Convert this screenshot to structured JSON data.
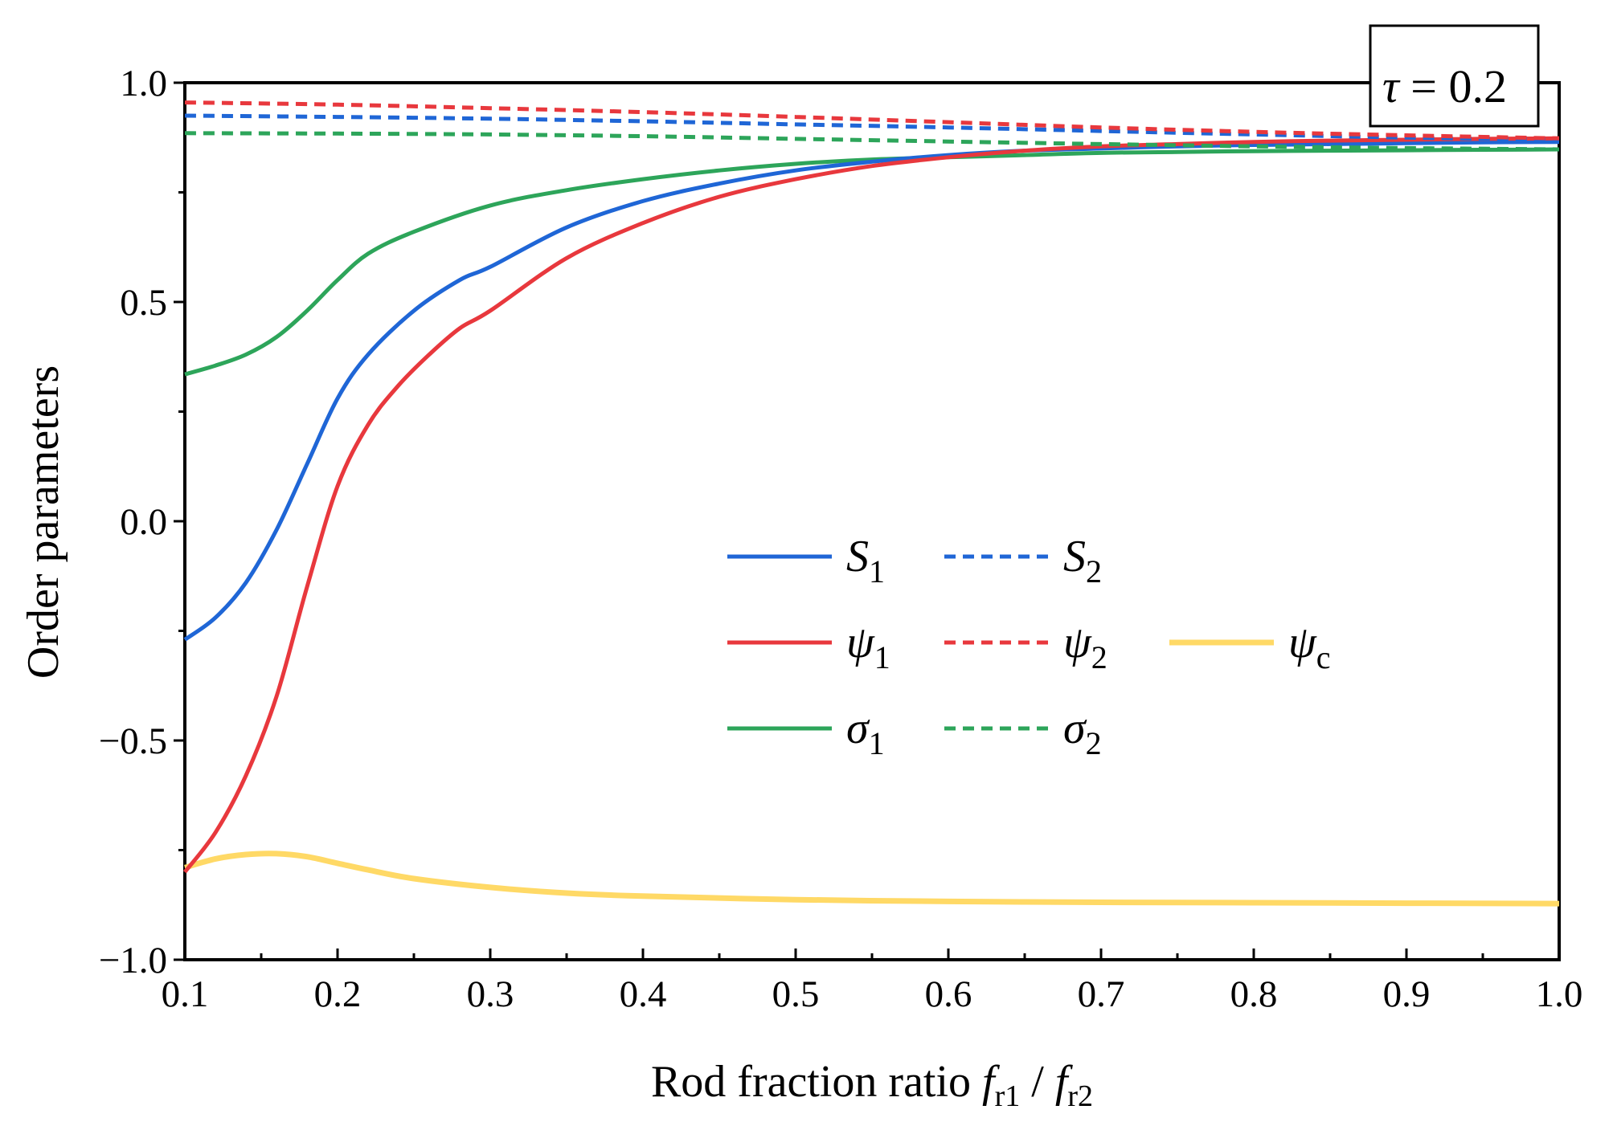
{
  "chart_data": {
    "type": "line",
    "annotation": {
      "symbol": "τ",
      "eq": " = ",
      "value": "0.2"
    },
    "xlabel": {
      "main": "Rod fraction ratio ",
      "f": "f",
      "sub1": "r1",
      "slash": " / ",
      "sub2": "r2"
    },
    "ylabel": "Order parameters",
    "xlim": [
      0.1,
      1.0
    ],
    "ylim": [
      -1.0,
      1.0
    ],
    "xticks": [
      0.1,
      0.2,
      0.3,
      0.4,
      0.5,
      0.6,
      0.7,
      0.8,
      0.9,
      1.0
    ],
    "xtick_labels": [
      "0.1",
      "0.2",
      "0.3",
      "0.4",
      "0.5",
      "0.6",
      "0.7",
      "0.8",
      "0.9",
      "1.0"
    ],
    "yticks": [
      -1.0,
      -0.5,
      0.0,
      0.5,
      1.0
    ],
    "ytick_labels": [
      "−1.0",
      "−0.5",
      "0.0",
      "0.5",
      "1.0"
    ],
    "legend_position": "center-right",
    "colors": {
      "blue": "#1f66d6",
      "red": "#e8383d",
      "green": "#2da55a",
      "yellow": "#ffd966"
    },
    "series": [
      {
        "name": "S1",
        "sym": "S",
        "sub": "1",
        "color": "#1f66d6",
        "dash": false,
        "width": 5,
        "x": [
          0.1,
          0.12,
          0.14,
          0.16,
          0.18,
          0.2,
          0.22,
          0.25,
          0.28,
          0.3,
          0.35,
          0.4,
          0.45,
          0.5,
          0.55,
          0.6,
          0.65,
          0.7,
          0.75,
          0.8,
          0.85,
          0.9,
          0.95,
          1.0
        ],
        "y": [
          -0.27,
          -0.22,
          -0.14,
          -0.02,
          0.13,
          0.28,
          0.38,
          0.48,
          0.55,
          0.58,
          0.67,
          0.73,
          0.77,
          0.8,
          0.82,
          0.835,
          0.845,
          0.85,
          0.855,
          0.858,
          0.86,
          0.862,
          0.864,
          0.865
        ]
      },
      {
        "name": "S2",
        "sym": "S",
        "sub": "2",
        "color": "#1f66d6",
        "dash": true,
        "width": 5,
        "x": [
          0.1,
          0.2,
          0.3,
          0.4,
          0.5,
          0.6,
          0.7,
          0.8,
          0.9,
          1.0
        ],
        "y": [
          0.925,
          0.922,
          0.918,
          0.912,
          0.905,
          0.898,
          0.89,
          0.882,
          0.875,
          0.87
        ]
      },
      {
        "name": "ψ1",
        "sym": "ψ",
        "sub": "1",
        "color": "#e8383d",
        "dash": false,
        "width": 5,
        "x": [
          0.1,
          0.12,
          0.14,
          0.16,
          0.18,
          0.2,
          0.22,
          0.24,
          0.26,
          0.28,
          0.3,
          0.35,
          0.4,
          0.45,
          0.5,
          0.55,
          0.6,
          0.65,
          0.7,
          0.75,
          0.8,
          0.85,
          0.9,
          0.95,
          1.0
        ],
        "y": [
          -0.8,
          -0.71,
          -0.58,
          -0.4,
          -0.15,
          0.08,
          0.22,
          0.31,
          0.38,
          0.44,
          0.48,
          0.6,
          0.68,
          0.74,
          0.78,
          0.81,
          0.83,
          0.845,
          0.855,
          0.86,
          0.865,
          0.868,
          0.87,
          0.872,
          0.873
        ]
      },
      {
        "name": "ψ2",
        "sym": "ψ",
        "sub": "2",
        "color": "#e8383d",
        "dash": true,
        "width": 5,
        "x": [
          0.1,
          0.2,
          0.3,
          0.4,
          0.5,
          0.6,
          0.7,
          0.8,
          0.9,
          1.0
        ],
        "y": [
          0.955,
          0.95,
          0.942,
          0.933,
          0.922,
          0.91,
          0.898,
          0.888,
          0.88,
          0.873
        ]
      },
      {
        "name": "ψc",
        "sym": "ψ",
        "sub": "c",
        "color": "#ffd966",
        "dash": false,
        "width": 7,
        "x": [
          0.1,
          0.12,
          0.14,
          0.16,
          0.18,
          0.2,
          0.22,
          0.25,
          0.3,
          0.35,
          0.4,
          0.5,
          0.6,
          0.7,
          0.8,
          0.9,
          1.0
        ],
        "y": [
          -0.79,
          -0.77,
          -0.76,
          -0.758,
          -0.765,
          -0.78,
          -0.795,
          -0.815,
          -0.835,
          -0.848,
          -0.855,
          -0.863,
          -0.867,
          -0.869,
          -0.87,
          -0.871,
          -0.872
        ]
      },
      {
        "name": "σ1",
        "sym": "σ",
        "sub": "1",
        "color": "#2da55a",
        "dash": false,
        "width": 5,
        "x": [
          0.1,
          0.12,
          0.14,
          0.16,
          0.18,
          0.2,
          0.22,
          0.25,
          0.3,
          0.35,
          0.4,
          0.45,
          0.5,
          0.55,
          0.6,
          0.65,
          0.7,
          0.75,
          0.8,
          0.85,
          0.9,
          0.95,
          1.0
        ],
        "y": [
          0.335,
          0.355,
          0.38,
          0.42,
          0.48,
          0.55,
          0.61,
          0.66,
          0.72,
          0.755,
          0.78,
          0.8,
          0.815,
          0.825,
          0.83,
          0.835,
          0.84,
          0.842,
          0.844,
          0.845,
          0.846,
          0.847,
          0.848
        ]
      },
      {
        "name": "σ2",
        "sym": "σ",
        "sub": "2",
        "color": "#2da55a",
        "dash": true,
        "width": 5,
        "x": [
          0.1,
          0.2,
          0.3,
          0.4,
          0.5,
          0.6,
          0.7,
          0.8,
          0.9,
          1.0
        ],
        "y": [
          0.885,
          0.884,
          0.882,
          0.878,
          0.872,
          0.866,
          0.86,
          0.855,
          0.851,
          0.848
        ]
      }
    ]
  }
}
